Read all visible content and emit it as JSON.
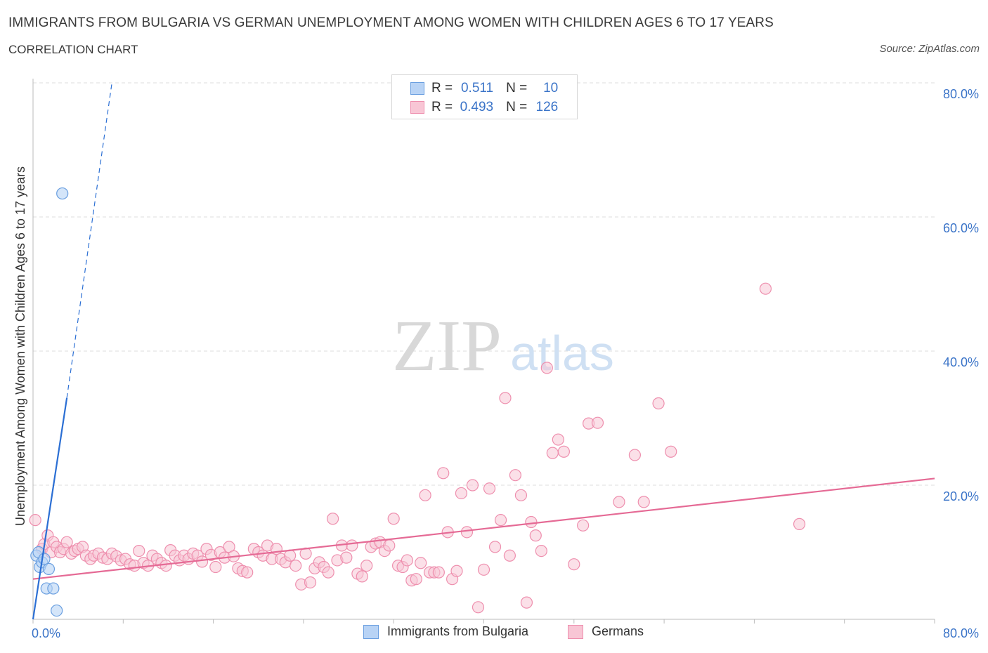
{
  "header": {
    "title": "IMMIGRANTS FROM BULGARIA VS GERMAN UNEMPLOYMENT AMONG WOMEN WITH CHILDREN AGES 6 TO 17 YEARS",
    "subtitle": "CORRELATION CHART",
    "source": "Source: ZipAtlas.com"
  },
  "watermark": {
    "zip": "ZIP",
    "atlas": "atlas"
  },
  "legend": {
    "rows": [
      {
        "r_label": "R =",
        "r_value": "0.511",
        "n_label": "N =",
        "n_value": "10"
      },
      {
        "r_label": "R =",
        "r_value": "0.493",
        "n_label": "N =",
        "n_value": "126"
      }
    ]
  },
  "colors": {
    "blue_fill": "#b8d3f5",
    "blue_stroke": "#6a9fe0",
    "blue_line": "#2b6fd4",
    "pink_fill": "#f8c6d5",
    "pink_stroke": "#ee8fae",
    "pink_line": "#e56a95",
    "grid": "#dddddd",
    "axis_text": "#3b74c8"
  },
  "chart_data": {
    "type": "scatter",
    "title": "IMMIGRANTS FROM BULGARIA VS GERMAN UNEMPLOYMENT AMONG WOMEN WITH CHILDREN AGES 6 TO 17 YEARS",
    "xlabel": "",
    "ylabel": "Unemployment Among Women with Children Ages 6 to 17 years",
    "xlim": [
      0,
      80
    ],
    "ylim": [
      0,
      80
    ],
    "x_tick_labels": [
      "0.0%",
      "80.0%"
    ],
    "y_tick_labels": [
      "20.0%",
      "40.0%",
      "60.0%",
      "80.0%"
    ],
    "y_ticks": [
      20,
      40,
      60,
      80
    ],
    "grid": true,
    "legend_position": "bottom",
    "series": [
      {
        "name": "Immigrants from Bulgaria",
        "color": "#6a9fe0",
        "trend": {
          "x": [
            0,
            3.0
          ],
          "y": [
            0,
            33.0
          ],
          "dashed_to": [
            7.0,
            80.0
          ]
        },
        "points": [
          [
            0.3,
            9.5
          ],
          [
            0.5,
            10.0
          ],
          [
            0.6,
            7.8
          ],
          [
            0.8,
            8.5
          ],
          [
            1.0,
            9.0
          ],
          [
            1.2,
            4.6
          ],
          [
            1.4,
            7.5
          ],
          [
            1.8,
            4.6
          ],
          [
            2.1,
            1.3
          ],
          [
            2.6,
            63.5
          ]
        ]
      },
      {
        "name": "Germans",
        "color": "#ee8fae",
        "trend": {
          "x": [
            0,
            80
          ],
          "y": [
            6.0,
            21.0
          ]
        },
        "points": [
          [
            0.2,
            14.8
          ],
          [
            0.8,
            10.5
          ],
          [
            1.0,
            11.2
          ],
          [
            1.3,
            12.5
          ],
          [
            1.6,
            10.0
          ],
          [
            1.8,
            11.5
          ],
          [
            2.1,
            10.8
          ],
          [
            2.4,
            10.0
          ],
          [
            2.7,
            10.5
          ],
          [
            3.0,
            11.5
          ],
          [
            3.4,
            9.8
          ],
          [
            3.7,
            10.2
          ],
          [
            4.0,
            10.5
          ],
          [
            4.4,
            10.8
          ],
          [
            4.7,
            9.5
          ],
          [
            5.1,
            9.0
          ],
          [
            5.4,
            9.5
          ],
          [
            5.8,
            9.8
          ],
          [
            6.2,
            9.2
          ],
          [
            6.6,
            9.0
          ],
          [
            7.0,
            9.8
          ],
          [
            7.4,
            9.4
          ],
          [
            7.8,
            8.8
          ],
          [
            8.2,
            9.0
          ],
          [
            8.6,
            8.2
          ],
          [
            9.0,
            8.0
          ],
          [
            9.4,
            10.2
          ],
          [
            9.8,
            8.4
          ],
          [
            10.2,
            8.0
          ],
          [
            10.6,
            9.5
          ],
          [
            11.0,
            9.0
          ],
          [
            11.4,
            8.4
          ],
          [
            11.8,
            8.0
          ],
          [
            12.2,
            10.3
          ],
          [
            12.6,
            9.5
          ],
          [
            13.0,
            8.8
          ],
          [
            13.4,
            9.5
          ],
          [
            13.8,
            9.0
          ],
          [
            14.2,
            9.8
          ],
          [
            14.6,
            9.5
          ],
          [
            15.0,
            8.6
          ],
          [
            15.4,
            10.5
          ],
          [
            15.8,
            9.6
          ],
          [
            16.2,
            7.8
          ],
          [
            16.6,
            10.0
          ],
          [
            17.0,
            9.2
          ],
          [
            17.4,
            10.8
          ],
          [
            17.8,
            9.4
          ],
          [
            18.2,
            7.6
          ],
          [
            18.6,
            7.2
          ],
          [
            19.0,
            7.0
          ],
          [
            19.6,
            10.5
          ],
          [
            20.0,
            10.0
          ],
          [
            20.4,
            9.5
          ],
          [
            20.8,
            11.0
          ],
          [
            21.2,
            9.0
          ],
          [
            21.6,
            10.5
          ],
          [
            22.0,
            9.0
          ],
          [
            22.4,
            8.5
          ],
          [
            22.8,
            9.5
          ],
          [
            23.3,
            8.0
          ],
          [
            23.8,
            5.2
          ],
          [
            24.2,
            9.8
          ],
          [
            24.6,
            5.5
          ],
          [
            25.0,
            7.6
          ],
          [
            25.4,
            8.5
          ],
          [
            25.8,
            7.8
          ],
          [
            26.2,
            7.0
          ],
          [
            26.6,
            15.0
          ],
          [
            27.0,
            8.8
          ],
          [
            27.4,
            11.0
          ],
          [
            27.8,
            9.2
          ],
          [
            28.3,
            11.0
          ],
          [
            28.8,
            6.8
          ],
          [
            29.2,
            6.4
          ],
          [
            29.6,
            8.0
          ],
          [
            30.0,
            10.8
          ],
          [
            30.4,
            11.3
          ],
          [
            30.8,
            11.5
          ],
          [
            31.2,
            10.2
          ],
          [
            31.6,
            11.0
          ],
          [
            32.0,
            15.0
          ],
          [
            32.4,
            8.0
          ],
          [
            32.8,
            7.8
          ],
          [
            33.2,
            8.8
          ],
          [
            33.6,
            5.8
          ],
          [
            34.0,
            6.0
          ],
          [
            34.4,
            8.4
          ],
          [
            34.8,
            18.5
          ],
          [
            35.2,
            7.0
          ],
          [
            35.6,
            7.0
          ],
          [
            36.0,
            7.0
          ],
          [
            36.4,
            21.8
          ],
          [
            36.8,
            13.0
          ],
          [
            37.2,
            6.0
          ],
          [
            37.6,
            7.2
          ],
          [
            38.0,
            18.8
          ],
          [
            38.5,
            13.0
          ],
          [
            39.0,
            20.0
          ],
          [
            39.5,
            1.8
          ],
          [
            40.0,
            7.4
          ],
          [
            40.5,
            19.5
          ],
          [
            41.0,
            10.8
          ],
          [
            41.5,
            14.8
          ],
          [
            41.9,
            33.0
          ],
          [
            42.3,
            9.5
          ],
          [
            42.8,
            21.5
          ],
          [
            43.3,
            18.5
          ],
          [
            43.8,
            2.5
          ],
          [
            44.2,
            14.5
          ],
          [
            44.6,
            12.5
          ],
          [
            45.1,
            10.2
          ],
          [
            45.6,
            37.5
          ],
          [
            46.1,
            24.8
          ],
          [
            46.6,
            26.8
          ],
          [
            47.1,
            25.0
          ],
          [
            48.0,
            8.2
          ],
          [
            48.8,
            14.0
          ],
          [
            49.3,
            29.2
          ],
          [
            50.1,
            29.3
          ],
          [
            52.0,
            17.5
          ],
          [
            53.4,
            24.5
          ],
          [
            54.2,
            17.5
          ],
          [
            55.5,
            32.2
          ],
          [
            56.6,
            25.0
          ],
          [
            65.0,
            49.3
          ],
          [
            68.0,
            14.2
          ]
        ]
      }
    ]
  }
}
